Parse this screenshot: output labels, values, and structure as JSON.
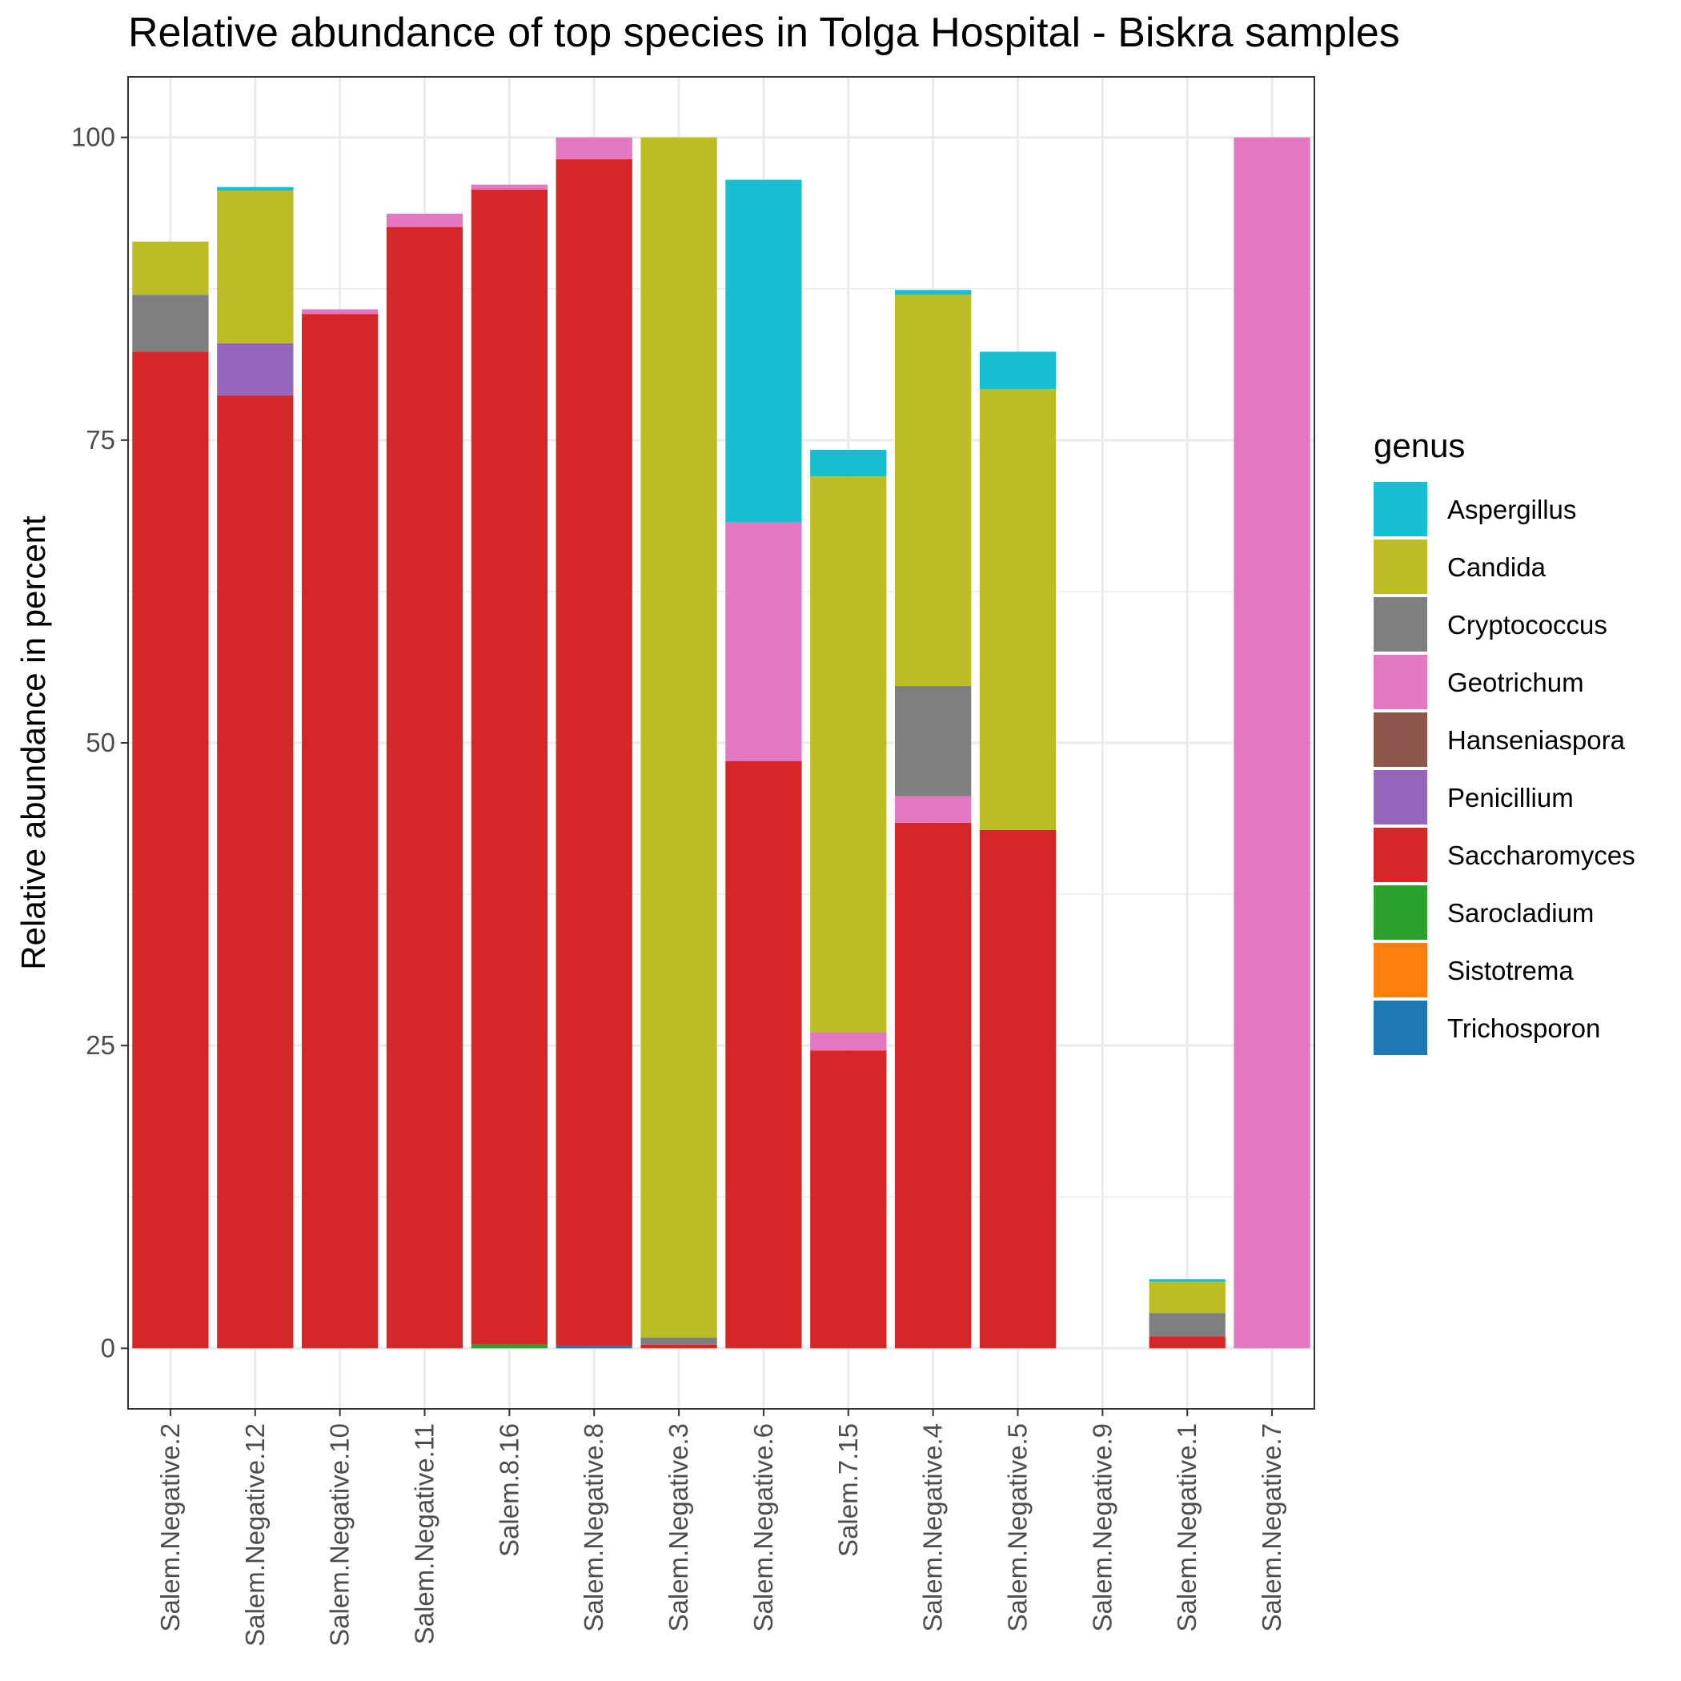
{
  "chart_data": {
    "type": "bar",
    "stacked": true,
    "title": "Relative abundance of top species in Tolga Hospital - Biskra  samples",
    "xlabel": "",
    "ylabel": "Relative abundance in percent",
    "ylim": [
      -5,
      105
    ],
    "y_ticks": [
      0,
      25,
      50,
      75,
      100
    ],
    "y_tick_labels": [
      "0",
      "25",
      "50",
      "75",
      "100"
    ],
    "grid": true,
    "legend": {
      "title": "genus",
      "position": "right"
    },
    "categories": [
      "Salem.Negative.2",
      "Salem.Negative.12",
      "Salem.Negative.10",
      "Salem.Negative.11",
      "Salem.8.16",
      "Salem.Negative.8",
      "Salem.Negative.3",
      "Salem.Negative.6",
      "Salem.7.15",
      "Salem.Negative.4",
      "Salem.Negative.5",
      "Salem.Negative.9",
      "Salem.Negative.1",
      "Salem.Negative.7"
    ],
    "series": [
      {
        "name": "Trichosporon",
        "color": "#1f77b4",
        "values": [
          0,
          0,
          0,
          0,
          0,
          0.2,
          0,
          0,
          0,
          0,
          0,
          0,
          0,
          0
        ]
      },
      {
        "name": "Sistotrema",
        "color": "#ff7f0e",
        "values": [
          0,
          0,
          0,
          0,
          0,
          0,
          0,
          0,
          0,
          0,
          0,
          0,
          0,
          0
        ]
      },
      {
        "name": "Sarocladium",
        "color": "#2ca02c",
        "values": [
          0,
          0,
          0,
          0,
          0.3,
          0,
          0,
          0,
          0,
          0,
          0,
          0,
          0,
          0
        ]
      },
      {
        "name": "Saccharomyces",
        "color": "#d62728",
        "values": [
          82.3,
          78.7,
          85.4,
          92.6,
          95.4,
          98.0,
          0.3,
          48.5,
          24.6,
          43.4,
          42.8,
          0,
          1.0,
          0
        ]
      },
      {
        "name": "Penicillium",
        "color": "#9467bd",
        "values": [
          0,
          4.3,
          0,
          0,
          0,
          0,
          0,
          0,
          0,
          0,
          0,
          0,
          0,
          0
        ]
      },
      {
        "name": "Hanseniaspora",
        "color": "#8c564b",
        "values": [
          0,
          0,
          0,
          0,
          0,
          0,
          0,
          0,
          0,
          0,
          0,
          0,
          0,
          0
        ]
      },
      {
        "name": "Geotrichum",
        "color": "#e377c2",
        "values": [
          0,
          0,
          0.4,
          1.1,
          0.4,
          1.8,
          0,
          19.7,
          1.5,
          2.2,
          0,
          0,
          0,
          100
        ]
      },
      {
        "name": "Cryptococcus",
        "color": "#7f7f7f",
        "values": [
          4.7,
          0,
          0,
          0,
          0,
          0,
          0.6,
          0,
          0,
          9.1,
          0,
          0,
          1.9,
          0
        ]
      },
      {
        "name": "Candida",
        "color": "#bcbd22",
        "values": [
          4.4,
          12.6,
          0,
          0,
          0,
          0,
          99.1,
          0,
          45.9,
          32.3,
          36.4,
          0,
          2.6,
          0
        ]
      },
      {
        "name": "Aspergillus",
        "color": "#17becf",
        "values": [
          0,
          0.3,
          0,
          0,
          0,
          0,
          0,
          28.3,
          2.2,
          0.4,
          3.1,
          0,
          0.2,
          0
        ]
      }
    ],
    "legend_order": [
      "Aspergillus",
      "Candida",
      "Cryptococcus",
      "Geotrichum",
      "Hanseniaspora",
      "Penicillium",
      "Saccharomyces",
      "Sarocladium",
      "Sistotrema",
      "Trichosporon"
    ]
  }
}
